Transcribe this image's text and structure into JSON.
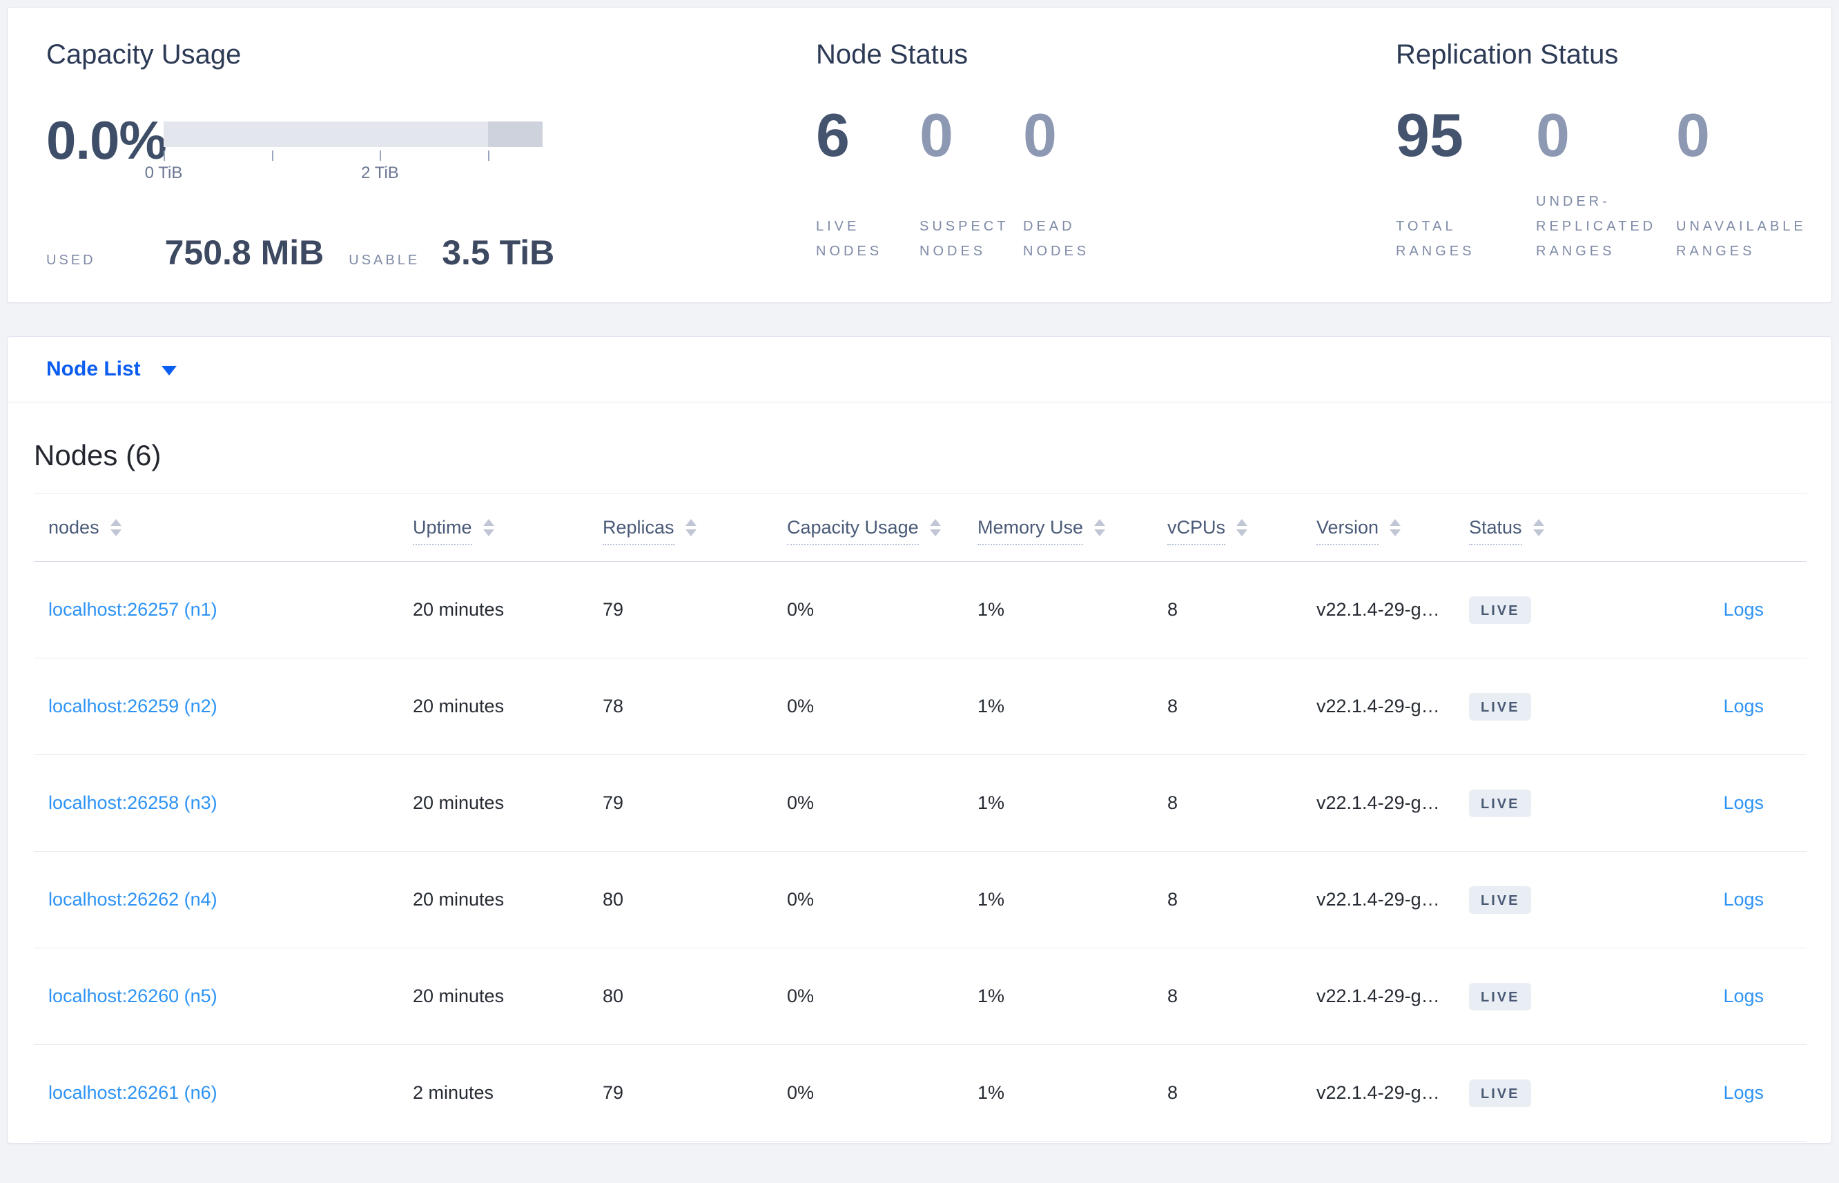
{
  "overview": {
    "capacity": {
      "title": "Capacity Usage",
      "percent": "0.0%",
      "used_label": "USED",
      "used_value": "750.8 MiB",
      "usable_label": "USABLE",
      "usable_value": "3.5 TiB",
      "bar_segments": [
        {
          "from_pct": 0,
          "to_pct": 85.7,
          "color": "#e4e6ee"
        },
        {
          "from_pct": 85.7,
          "to_pct": 100,
          "color": "#ced2dd"
        }
      ],
      "axis_ticks": [
        {
          "pos_pct": 0,
          "label": "0 TiB"
        },
        {
          "pos_pct": 28.6,
          "label": ""
        },
        {
          "pos_pct": 57.1,
          "label": "2 TiB"
        },
        {
          "pos_pct": 85.7,
          "label": ""
        }
      ]
    },
    "node_status": {
      "title": "Node Status",
      "stats": [
        {
          "value": "6",
          "label": "LIVE NODES",
          "muted": false
        },
        {
          "value": "0",
          "label": "SUSPECT NODES",
          "muted": true
        },
        {
          "value": "0",
          "label": "DEAD NODES",
          "muted": true
        }
      ]
    },
    "replication_status": {
      "title": "Replication Status",
      "stats": [
        {
          "value": "95",
          "label": "TOTAL RANGES",
          "muted": false
        },
        {
          "value": "0",
          "label": "UNDER-REPLICATED RANGES",
          "muted": true
        },
        {
          "value": "0",
          "label": "UNAVAILABLE RANGES",
          "muted": true
        }
      ]
    }
  },
  "node_list_dropdown": {
    "label": "Node List",
    "caret_icon": "caret-down"
  },
  "nodes_section": {
    "title": "Nodes (6)",
    "sort_icon": "sort-arrows",
    "columns": [
      {
        "label": "nodes",
        "sortable": true,
        "dotted": false
      },
      {
        "label": "Uptime",
        "sortable": true,
        "dotted": true
      },
      {
        "label": "Replicas",
        "sortable": true,
        "dotted": true
      },
      {
        "label": "Capacity Usage",
        "sortable": true,
        "dotted": true
      },
      {
        "label": "Memory Use",
        "sortable": true,
        "dotted": true
      },
      {
        "label": "vCPUs",
        "sortable": true,
        "dotted": true
      },
      {
        "label": "Version",
        "sortable": true,
        "dotted": true
      },
      {
        "label": "Status",
        "sortable": true,
        "dotted": true
      },
      {
        "label": "",
        "sortable": false,
        "dotted": false
      }
    ],
    "rows": [
      {
        "address": "localhost:26257 (n1)",
        "uptime": "20 minutes",
        "replicas": "79",
        "capacity_usage": "0%",
        "memory_use": "1%",
        "vcpus": "8",
        "version": "v22.1.4-29-g…",
        "status": "LIVE",
        "logs_label": "Logs"
      },
      {
        "address": "localhost:26259 (n2)",
        "uptime": "20 minutes",
        "replicas": "78",
        "capacity_usage": "0%",
        "memory_use": "1%",
        "vcpus": "8",
        "version": "v22.1.4-29-g…",
        "status": "LIVE",
        "logs_label": "Logs"
      },
      {
        "address": "localhost:26258 (n3)",
        "uptime": "20 minutes",
        "replicas": "79",
        "capacity_usage": "0%",
        "memory_use": "1%",
        "vcpus": "8",
        "version": "v22.1.4-29-g…",
        "status": "LIVE",
        "logs_label": "Logs"
      },
      {
        "address": "localhost:26262 (n4)",
        "uptime": "20 minutes",
        "replicas": "80",
        "capacity_usage": "0%",
        "memory_use": "1%",
        "vcpus": "8",
        "version": "v22.1.4-29-g…",
        "status": "LIVE",
        "logs_label": "Logs"
      },
      {
        "address": "localhost:26260 (n5)",
        "uptime": "20 minutes",
        "replicas": "80",
        "capacity_usage": "0%",
        "memory_use": "1%",
        "vcpus": "8",
        "version": "v22.1.4-29-g…",
        "status": "LIVE",
        "logs_label": "Logs"
      },
      {
        "address": "localhost:26261 (n6)",
        "uptime": "2 minutes",
        "replicas": "79",
        "capacity_usage": "0%",
        "memory_use": "1%",
        "vcpus": "8",
        "version": "v22.1.4-29-g…",
        "status": "LIVE",
        "logs_label": "Logs"
      }
    ]
  },
  "colors": {
    "page_background": "#f2f3f7",
    "card_background": "#ffffff",
    "primary_link_blue": "#0b5cf0",
    "row_link_blue": "#2d93f5",
    "stat_strong": "#44536e",
    "stat_muted": "#8d98b2",
    "label_gray_blue": "#7e8aa6",
    "badge_background": "#e9edf4",
    "badge_text": "#4a5a75",
    "capacity_bar_light": "#e4e6ee",
    "capacity_bar_dark": "#ced2dd"
  }
}
